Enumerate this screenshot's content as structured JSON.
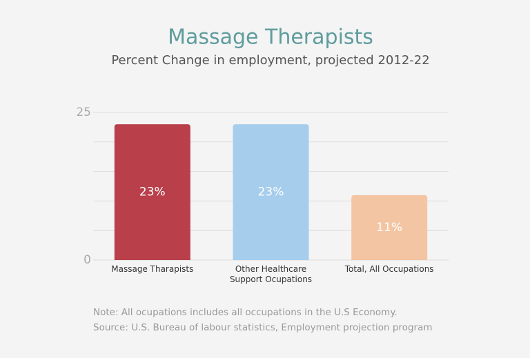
{
  "chart_data": {
    "type": "bar",
    "title": "Massage Therapists",
    "subtitle": "Percent Change in employment, projected 2012-22",
    "categories": [
      "Massage Tharapists",
      "Other Healthcare\nSupport Ocupations",
      "Total, All Occupations"
    ],
    "values": [
      23,
      23,
      11
    ],
    "value_labels": [
      "23%",
      "23%",
      "11%"
    ],
    "colors": [
      "#b9404a",
      "#a6cdec",
      "#f4c5a3"
    ],
    "ylim": [
      0,
      25
    ],
    "yticks": [
      0,
      25
    ],
    "ygrid": [
      5,
      10,
      15,
      20
    ],
    "grid": true,
    "notes": [
      "Note: All ocupations includes all occupations in the U.S Economy.",
      "Source: U.S. Bureau of labour statistics, Employment projection program"
    ]
  }
}
